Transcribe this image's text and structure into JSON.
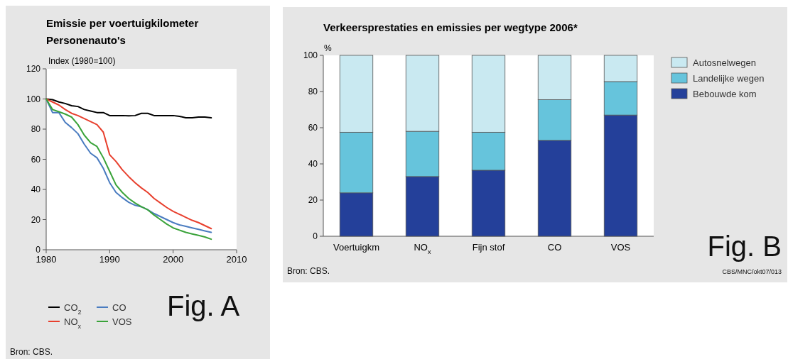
{
  "chart_data": [
    {
      "type": "line",
      "title": "Emissie per voertuigkilometer",
      "subtitle": "Personenauto's",
      "ylabel": "Index (1980=100)",
      "x": [
        1980,
        1981,
        1982,
        1983,
        1984,
        1985,
        1986,
        1987,
        1988,
        1989,
        1990,
        1991,
        1992,
        1993,
        1994,
        1995,
        1996,
        1997,
        1998,
        1999,
        2000,
        2001,
        2002,
        2003,
        2004,
        2005,
        2006
      ],
      "series": [
        {
          "name": "CO$_{2}$",
          "color": "#000000",
          "values": [
            100,
            99.5,
            98,
            97,
            95.5,
            95,
            93,
            92,
            91,
            91,
            89,
            89,
            89,
            88.8,
            89,
            90.5,
            90.5,
            89,
            89,
            89,
            89,
            88.5,
            87.5,
            87.5,
            88,
            88,
            87.5
          ]
        },
        {
          "name": "CO",
          "color": "#4a7cc0",
          "values": [
            100,
            91,
            91,
            84.5,
            81,
            77,
            70,
            64,
            61,
            54,
            44.5,
            38,
            34.5,
            31.5,
            29.5,
            28.5,
            26.5,
            24,
            22,
            20,
            18,
            16.5,
            15.5,
            14.5,
            13.5,
            12.5,
            11.5
          ]
        },
        {
          "name": "NO$_{x}$",
          "color": "#e8402e",
          "values": [
            100,
            98,
            96,
            93,
            90.5,
            89,
            87,
            85,
            83,
            78,
            63,
            58.5,
            53,
            48.5,
            44.5,
            41,
            38,
            34,
            31,
            28,
            25.5,
            23.5,
            21.5,
            19.5,
            18,
            16,
            14
          ]
        },
        {
          "name": "VOS",
          "color": "#3aa33a",
          "values": [
            100,
            93,
            91.5,
            90,
            88,
            83,
            76,
            71,
            68.5,
            61,
            52,
            43,
            38,
            34,
            31,
            28.5,
            26.5,
            23,
            20,
            17,
            14.5,
            13,
            11.5,
            10.5,
            9.5,
            8.5,
            7
          ]
        }
      ],
      "xlim": [
        1980,
        2010
      ],
      "xticks": [
        1980,
        1990,
        2000,
        2010
      ],
      "ylim": [
        0,
        120
      ],
      "yticks": [
        0,
        20,
        40,
        60,
        80,
        100,
        120
      ],
      "grid": false,
      "legend": "bottom",
      "line_style": "solid",
      "annotations": [
        "Fig. A",
        "Bron: CBS."
      ]
    },
    {
      "type": "bar",
      "title": "Verkeersprestaties en emissies per wegtype 2006*",
      "ylabel": "%",
      "categories": [
        "Voertuigkm",
        "NO$_{x}$",
        "Fijn stof",
        "CO",
        "VOS"
      ],
      "stacked": true,
      "series": [
        {
          "name": "Bebouwde kom",
          "color": "#24409a",
          "values": [
            24,
            33,
            36.5,
            53,
            67
          ]
        },
        {
          "name": "Landelijke wegen",
          "color": "#66c4dc",
          "values": [
            33.5,
            25,
            21,
            22.5,
            18.5
          ]
        },
        {
          "name": "Autosnelwegen",
          "color": "#c9e9f1",
          "values": [
            42.5,
            42,
            42.5,
            24.5,
            14.5
          ]
        }
      ],
      "ylim": [
        0,
        100
      ],
      "yticks": [
        0,
        20,
        40,
        60,
        80,
        100
      ],
      "grid": false,
      "legend": "right",
      "annotations": [
        "Fig. B",
        "Bron: CBS.",
        "CBS/MNC/okt07/013"
      ]
    }
  ]
}
